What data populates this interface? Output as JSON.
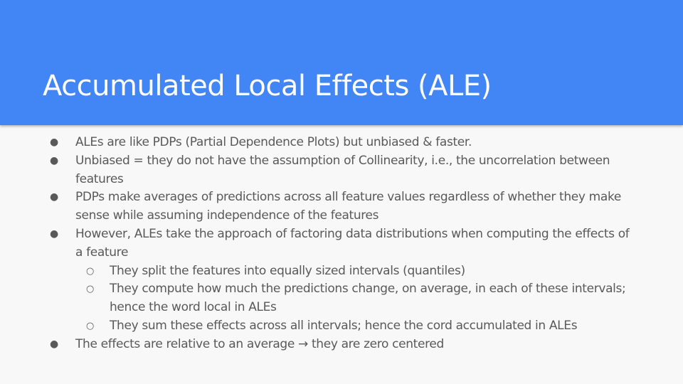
{
  "slide": {
    "title": "Accumulated Local Effects (ALE)",
    "colors": {
      "header": "#4285f4",
      "body_text": "#595959",
      "background": "#f8f8f8"
    },
    "bullets": [
      {
        "level": 1,
        "marker": "●",
        "text": "ALEs are like PDPs (Partial Dependence Plots) but unbiased & faster."
      },
      {
        "level": 1,
        "marker": "●",
        "text": "Unbiased = they do not have the assumption of Collinearity, i.e.,  the uncorrelation between features"
      },
      {
        "level": 1,
        "marker": "●",
        "text": "PDPs make averages of predictions across all feature values regardless of whether they make sense while assuming independence of the features"
      },
      {
        "level": 1,
        "marker": "●",
        "text": "However, ALEs take the approach of factoring data distributions when computing the effects of a feature"
      },
      {
        "level": 2,
        "marker": "○",
        "text": "They split the features into equally sized intervals (quantiles)"
      },
      {
        "level": 2,
        "marker": "○",
        "text": "They compute how much the predictions change, on average, in each of these intervals; hence the word local in ALEs"
      },
      {
        "level": 2,
        "marker": "○",
        "text": "They sum these effects across all intervals; hence the cord accumulated in ALEs"
      },
      {
        "level": 1,
        "marker": "●",
        "text": "The effects are relative to an average → they are zero centered"
      }
    ]
  }
}
